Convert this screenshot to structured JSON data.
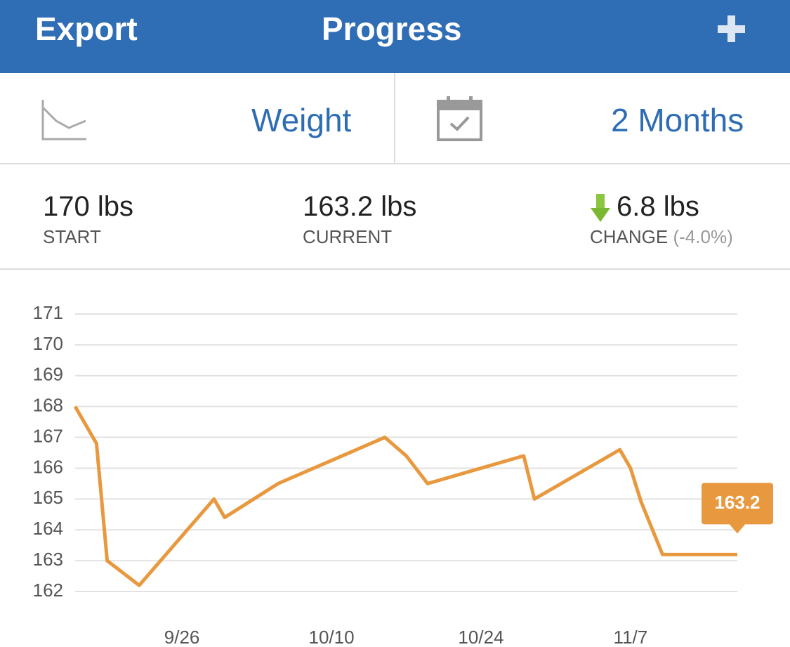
{
  "header": {
    "left": "Export",
    "title": "Progress"
  },
  "selectors": {
    "metric": "Weight",
    "range": "2 Months"
  },
  "stats": [
    {
      "value": "170 lbs",
      "label": "START"
    },
    {
      "value": "163.2 lbs",
      "label": "CURRENT"
    },
    {
      "value": "6.8 lbs",
      "label": "CHANGE",
      "note": "(-4.0%)"
    }
  ],
  "chart_data": {
    "type": "line",
    "x": [
      "9/16",
      "9/18",
      "9/19",
      "9/22",
      "9/29",
      "9/30",
      "10/5",
      "10/15",
      "10/17",
      "10/19",
      "10/28",
      "10/29",
      "11/6",
      "11/7",
      "11/8",
      "11/10",
      "11/17"
    ],
    "series": [
      {
        "color": "#e8993f",
        "values": [
          168.0,
          166.8,
          163.0,
          162.2,
          165.0,
          164.4,
          165.5,
          167.0,
          166.4,
          165.5,
          166.4,
          165.0,
          166.6,
          166.0,
          164.9,
          163.2,
          163.2
        ]
      }
    ],
    "xlim": [
      "9/16",
      "11/17"
    ],
    "xticks": [
      "9/26",
      "10/10",
      "10/24",
      "11/7"
    ],
    "ylim": [
      162,
      171
    ],
    "yticks": [
      162,
      163,
      164,
      165,
      166,
      167,
      168,
      169,
      170,
      171
    ],
    "grid": true
  }
}
